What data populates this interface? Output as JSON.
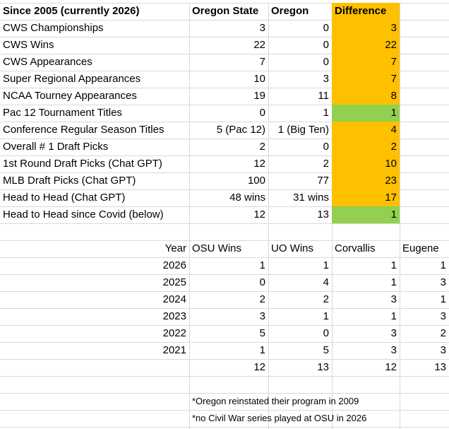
{
  "summary_headers": {
    "label": "Since 2005 (currently 2026)",
    "osu": "Oregon State",
    "uo": "Oregon",
    "diff": "Difference"
  },
  "summary_rows": [
    {
      "label": "CWS Championships",
      "osu": "3",
      "uo": "0",
      "diff": "3",
      "color": "#ffc000"
    },
    {
      "label": "CWS Wins",
      "osu": "22",
      "uo": "0",
      "diff": "22",
      "color": "#ffc000"
    },
    {
      "label": "CWS Appearances",
      "osu": "7",
      "uo": "0",
      "diff": "7",
      "color": "#ffc000"
    },
    {
      "label": "Super Regional Appearances",
      "osu": "10",
      "uo": "3",
      "diff": "7",
      "color": "#ffc000"
    },
    {
      "label": "NCAA Tourney Appearances",
      "osu": "19",
      "uo": "11",
      "diff": "8",
      "color": "#ffc000"
    },
    {
      "label": "Pac 12 Tournament Titles",
      "osu": "0",
      "uo": "1",
      "diff": "1",
      "color": "#92d050"
    },
    {
      "label": "Conference Regular Season Titles",
      "osu": "5 (Pac 12)",
      "uo": "1 (Big Ten)",
      "diff": "4",
      "color": "#ffc000"
    },
    {
      "label": "Overall # 1 Draft Picks",
      "osu": "2",
      "uo": "0",
      "diff": "2",
      "color": "#ffc000"
    },
    {
      "label": "1st Round Draft Picks (Chat GPT)",
      "osu": "12",
      "uo": "2",
      "diff": "10",
      "color": "#ffc000"
    },
    {
      "label": "MLB Draft Picks (Chat GPT)",
      "osu": "100",
      "uo": "77",
      "diff": "23",
      "color": "#ffc000"
    },
    {
      "label": "Head to Head (Chat GPT)",
      "osu": "48 wins",
      "uo": "31 wins",
      "diff": "17",
      "color": "#ffc000"
    },
    {
      "label": "Head to Head since Covid (below)",
      "osu": "12",
      "uo": "13",
      "diff": "1",
      "color": "#92d050"
    }
  ],
  "yearly_headers": {
    "year": "Year",
    "osu_wins": "OSU Wins",
    "uo_wins": "UO Wins",
    "corvallis": "Corvallis",
    "eugene": "Eugene"
  },
  "yearly_rows": [
    {
      "year": "2026",
      "osu_wins": "1",
      "uo_wins": "1",
      "corvallis": "1",
      "eugene": "1"
    },
    {
      "year": "2025",
      "osu_wins": "0",
      "uo_wins": "4",
      "corvallis": "1",
      "eugene": "3"
    },
    {
      "year": "2024",
      "osu_wins": "2",
      "uo_wins": "2",
      "corvallis": "3",
      "eugene": "1"
    },
    {
      "year": "2023",
      "osu_wins": "3",
      "uo_wins": "1",
      "corvallis": "1",
      "eugene": "3"
    },
    {
      "year": "2022",
      "osu_wins": "5",
      "uo_wins": "0",
      "corvallis": "3",
      "eugene": "2"
    },
    {
      "year": "2021",
      "osu_wins": "1",
      "uo_wins": "5",
      "corvallis": "3",
      "eugene": "3"
    }
  ],
  "yearly_totals": {
    "osu_wins": "12",
    "uo_wins": "13",
    "corvallis": "12",
    "eugene": "13"
  },
  "notes": [
    "*Oregon reinstated their program in 2009",
    "*no Civil War series played at OSU in 2026"
  ]
}
